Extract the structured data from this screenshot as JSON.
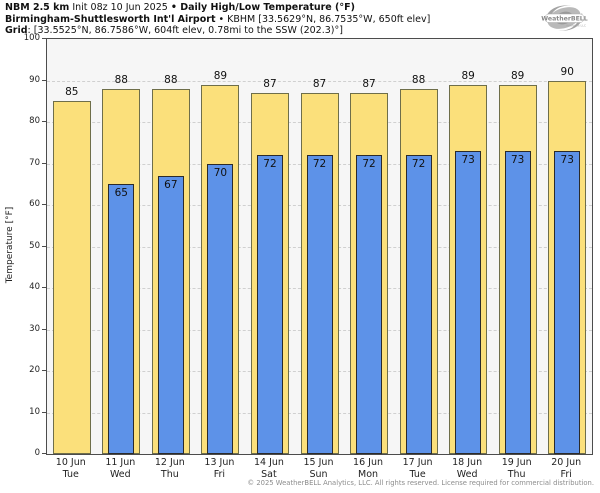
{
  "header": {
    "model": "NBM 2.5 km",
    "init": " Init 08z 10 Jun 2025 ",
    "bullet1": "• ",
    "product": "Daily High/Low Temperature (°F)",
    "station_name": "Birmingham-Shuttlesworth Int'l Airport",
    "bullet2": " • ",
    "station_details": "KBHM [33.5629°N, 86.7535°W, 650ft elev]",
    "grid_label": "Grid",
    "grid_details": ": [33.5525°N, 86.7586°W, 604ft elev, 0.78mi to the SSW (202.3)°]"
  },
  "logo": {
    "brand": "WeatherBELL",
    "sub": "Analytics LLC"
  },
  "chart_data": {
    "type": "bar",
    "title": "Daily High/Low Temperature (°F)",
    "ylabel": "Temperature [°F]",
    "ylim": [
      0,
      100
    ],
    "yticks": [
      0,
      10,
      20,
      30,
      40,
      50,
      60,
      70,
      80,
      90,
      100
    ],
    "grid": "horizontal-dashed",
    "legend_position": "none",
    "categories": [
      "10 Jun",
      "11 Jun",
      "12 Jun",
      "13 Jun",
      "14 Jun",
      "15 Jun",
      "16 Jun",
      "17 Jun",
      "18 Jun",
      "19 Jun",
      "20 Jun"
    ],
    "day_labels": [
      "Tue",
      "Wed",
      "Thu",
      "Fri",
      "Sat",
      "Sun",
      "Mon",
      "Tue",
      "Wed",
      "Thu",
      "Fri"
    ],
    "series": [
      {
        "name": "Daily High",
        "color": "#fbe07b",
        "border_color": "#6e6e4a",
        "values": [
          85,
          88,
          88,
          89,
          87,
          87,
          87,
          88,
          89,
          89,
          90
        ]
      },
      {
        "name": "Daily Low",
        "color": "#5d92e8",
        "border_color": "#2b2b2b",
        "values": [
          null,
          65,
          67,
          70,
          72,
          72,
          72,
          72,
          73,
          73,
          73
        ]
      }
    ],
    "plot_background": "#f6f6f6",
    "gridline_color": "#d0d0d0"
  },
  "footer": {
    "copyright": "© 2025 WeatherBELL Analytics, LLC. All rights reserved. License required for commercial distribution."
  }
}
